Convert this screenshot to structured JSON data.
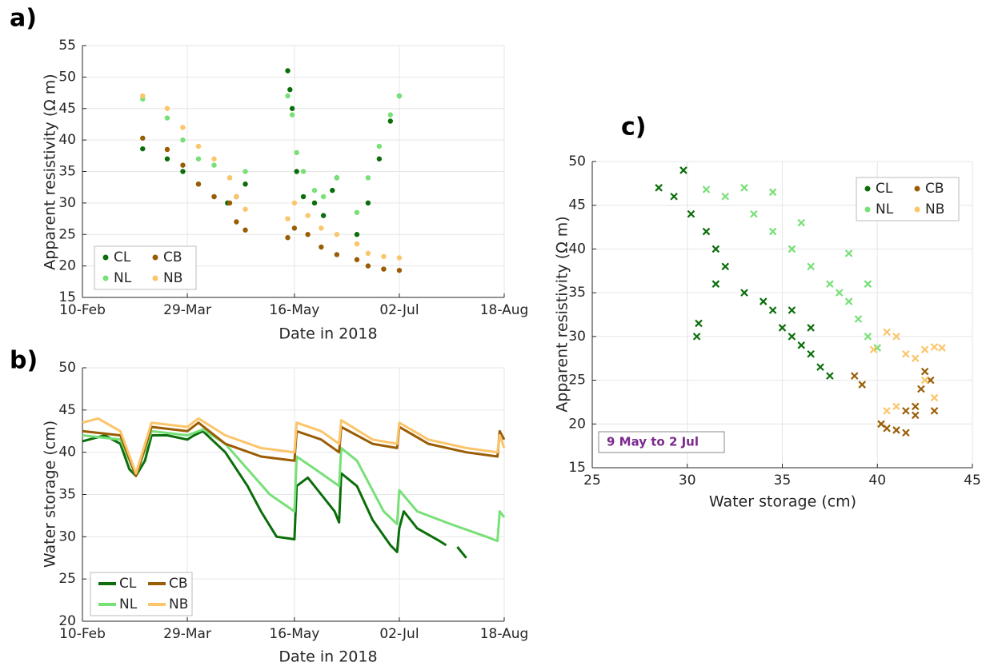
{
  "chart_data": [
    {
      "type": "scatter",
      "panel_label": "a)",
      "xlabel": "Date in 2018",
      "ylabel": "Apparent resistivity (Ω m)",
      "xlim": [
        "2018-02-10",
        "2018-08-18"
      ],
      "xticks": [
        {
          "value": "2018-02-10",
          "label": "10-Feb"
        },
        {
          "value": "2018-03-29",
          "label": "29-Mar"
        },
        {
          "value": "2018-05-16",
          "label": "16-May"
        },
        {
          "value": "2018-07-02",
          "label": "02-Jul"
        },
        {
          "value": "2018-08-18",
          "label": "18-Aug"
        }
      ],
      "ylim": [
        15,
        55
      ],
      "yticks": [
        15,
        20,
        25,
        30,
        35,
        40,
        45,
        50,
        55
      ],
      "grid": true,
      "legend": "lower left",
      "marker": "dot",
      "series": [
        {
          "name": "CL",
          "color": "#0b6e0b",
          "x": [
            "2018-03-09",
            "2018-03-20",
            "2018-03-27",
            "2018-04-03",
            "2018-04-10",
            "2018-04-16",
            "2018-04-20",
            "2018-04-24",
            "2018-05-13",
            "2018-05-14",
            "2018-05-15",
            "2018-05-17",
            "2018-05-20",
            "2018-05-25",
            "2018-05-29",
            "2018-06-02",
            "2018-06-04",
            "2018-06-13",
            "2018-06-18",
            "2018-06-23",
            "2018-06-28",
            "2018-07-02"
          ],
          "values": [
            38.6,
            37,
            35,
            33,
            31,
            30,
            31,
            33,
            51,
            48,
            45,
            35,
            31,
            30,
            28,
            32,
            34,
            25,
            30,
            37,
            43,
            47
          ]
        },
        {
          "name": "NL",
          "color": "#77e077",
          "x": [
            "2018-03-09",
            "2018-03-20",
            "2018-03-27",
            "2018-04-03",
            "2018-04-10",
            "2018-04-17",
            "2018-04-24",
            "2018-05-13",
            "2018-05-15",
            "2018-05-17",
            "2018-05-20",
            "2018-05-25",
            "2018-05-29",
            "2018-06-04",
            "2018-06-13",
            "2018-06-18",
            "2018-06-23",
            "2018-06-28",
            "2018-07-02"
          ],
          "values": [
            46.5,
            43.5,
            40,
            37,
            36,
            34,
            35,
            47,
            44,
            38,
            35,
            32,
            31,
            34,
            28.5,
            34,
            39,
            44,
            47
          ]
        },
        {
          "name": "CB",
          "color": "#9a5d05",
          "x": [
            "2018-03-09",
            "2018-03-20",
            "2018-03-27",
            "2018-04-03",
            "2018-04-10",
            "2018-04-17",
            "2018-04-20",
            "2018-04-24",
            "2018-05-13",
            "2018-05-16",
            "2018-05-22",
            "2018-05-28",
            "2018-06-04",
            "2018-06-13",
            "2018-06-18",
            "2018-06-25",
            "2018-07-02"
          ],
          "values": [
            40.3,
            38.5,
            36,
            33,
            31,
            30,
            27,
            25.7,
            24.5,
            26,
            25,
            23,
            21.8,
            21,
            20,
            19.5,
            19.3
          ]
        },
        {
          "name": "NB",
          "color": "#fbc56a",
          "x": [
            "2018-03-09",
            "2018-03-20",
            "2018-03-27",
            "2018-04-03",
            "2018-04-10",
            "2018-04-17",
            "2018-04-20",
            "2018-04-24",
            "2018-05-13",
            "2018-05-16",
            "2018-05-22",
            "2018-05-28",
            "2018-06-04",
            "2018-06-13",
            "2018-06-18",
            "2018-06-25",
            "2018-07-02"
          ],
          "values": [
            47,
            45,
            42,
            39,
            37,
            34,
            31,
            29,
            27.5,
            30,
            28,
            26,
            25,
            23.5,
            22,
            21.5,
            21.3
          ]
        }
      ]
    },
    {
      "type": "line",
      "panel_label": "b)",
      "xlabel": "Date in 2018",
      "ylabel": "Water storage (cm)",
      "xlim": [
        "2018-02-10",
        "2018-08-18"
      ],
      "xticks": [
        {
          "value": "2018-02-10",
          "label": "10-Feb"
        },
        {
          "value": "2018-03-29",
          "label": "29-Mar"
        },
        {
          "value": "2018-05-16",
          "label": "16-May"
        },
        {
          "value": "2018-07-02",
          "label": "02-Jul"
        },
        {
          "value": "2018-08-18",
          "label": "18-Aug"
        }
      ],
      "ylim": [
        20,
        50
      ],
      "yticks": [
        20,
        25,
        30,
        35,
        40,
        45,
        50
      ],
      "grid": true,
      "legend": "lower left",
      "series": [
        {
          "name": "CL",
          "color": "#0b6e0b",
          "x": [
            "2018-02-10",
            "2018-02-20",
            "2018-02-27",
            "2018-03-03",
            "2018-03-06",
            "2018-03-10",
            "2018-03-13",
            "2018-03-20",
            "2018-03-29",
            "2018-04-01",
            "2018-04-05",
            "2018-04-15",
            "2018-04-25",
            "2018-05-01",
            "2018-05-08",
            "2018-05-16",
            "2018-05-17",
            "2018-05-22",
            "2018-05-28",
            "2018-06-03",
            "2018-06-05",
            "2018-06-06",
            "2018-06-13",
            "2018-06-20",
            "2018-06-28",
            "2018-07-01",
            "2018-07-02",
            "2018-07-04",
            "2018-07-10",
            "2018-07-20",
            "2018-07-23",
            "2018-07-26",
            "2018-07-28",
            "2018-08-01"
          ],
          "values": [
            41.3,
            42,
            41,
            38,
            37.2,
            39,
            42,
            42,
            41.5,
            42,
            42.5,
            40,
            36,
            33,
            30,
            29.7,
            36,
            37,
            35,
            33,
            31.7,
            37.5,
            36,
            32,
            29,
            28.2,
            31,
            33,
            31,
            29.5,
            29,
            null,
            28.8,
            27.5
          ]
        },
        {
          "name": "NL",
          "color": "#77e077",
          "x": [
            "2018-02-10",
            "2018-02-27",
            "2018-03-06",
            "2018-03-13",
            "2018-03-29",
            "2018-04-05",
            "2018-04-15",
            "2018-04-25",
            "2018-05-05",
            "2018-05-16",
            "2018-05-17",
            "2018-05-28",
            "2018-06-05",
            "2018-06-06",
            "2018-06-13",
            "2018-06-25",
            "2018-07-01",
            "2018-07-02",
            "2018-07-10",
            "2018-07-25",
            "2018-08-10",
            "2018-08-15",
            "2018-08-16",
            "2018-08-18"
          ],
          "values": [
            42,
            41.5,
            37.2,
            42.5,
            42,
            42.7,
            41,
            38,
            35,
            33,
            39.5,
            37.5,
            36,
            40.5,
            39,
            33,
            31.5,
            35.5,
            33,
            31.5,
            30,
            29.5,
            33,
            32.3
          ]
        },
        {
          "name": "CB",
          "color": "#9a5d05",
          "x": [
            "2018-02-10",
            "2018-02-27",
            "2018-03-06",
            "2018-03-13",
            "2018-03-29",
            "2018-04-03",
            "2018-04-15",
            "2018-05-01",
            "2018-05-16",
            "2018-05-17",
            "2018-05-28",
            "2018-06-05",
            "2018-06-06",
            "2018-06-20",
            "2018-07-01",
            "2018-07-02",
            "2018-07-15",
            "2018-08-01",
            "2018-08-15",
            "2018-08-16",
            "2018-08-18"
          ],
          "values": [
            42.5,
            42,
            37.2,
            43,
            42.5,
            43.5,
            41,
            39.5,
            39,
            42.5,
            41.5,
            40,
            43,
            41,
            40.5,
            43,
            41,
            40,
            39.5,
            42.5,
            41.5
          ]
        },
        {
          "name": "NB",
          "color": "#fbc56a",
          "x": [
            "2018-02-10",
            "2018-02-17",
            "2018-02-27",
            "2018-03-06",
            "2018-03-13",
            "2018-03-29",
            "2018-04-03",
            "2018-04-15",
            "2018-05-01",
            "2018-05-16",
            "2018-05-17",
            "2018-05-28",
            "2018-06-05",
            "2018-06-06",
            "2018-06-20",
            "2018-07-01",
            "2018-07-02",
            "2018-07-15",
            "2018-08-01",
            "2018-08-15",
            "2018-08-16",
            "2018-08-18"
          ],
          "values": [
            43.5,
            44,
            42.5,
            37.5,
            43.5,
            43,
            44,
            42,
            40.5,
            40,
            43.5,
            42.5,
            41,
            43.8,
            41.5,
            41,
            43.5,
            41.5,
            40.5,
            40,
            42,
            40.5
          ]
        }
      ]
    },
    {
      "type": "scatter",
      "panel_label": "c)",
      "xlabel": "Water storage (cm)",
      "ylabel": "Apparent resistivity (Ω m)",
      "annotation": "9 May to 2 Jul",
      "xlim": [
        25,
        45
      ],
      "xticks": [
        25,
        30,
        35,
        40,
        45
      ],
      "ylim": [
        15,
        50
      ],
      "yticks": [
        15,
        20,
        25,
        30,
        35,
        40,
        45,
        50
      ],
      "grid": true,
      "legend": "upper right",
      "marker": "x",
      "series": [
        {
          "name": "CL",
          "color": "#0b6e0b",
          "x": [
            28.5,
            29.3,
            29.8,
            30.2,
            31,
            31.5,
            32,
            31.5,
            33,
            34,
            34.5,
            35,
            35.5,
            36,
            36.5,
            37,
            37.5,
            35.5,
            36.5,
            30.5,
            30.6
          ],
          "values": [
            47,
            46,
            49,
            44,
            42,
            40,
            38,
            36,
            35,
            34,
            33,
            31,
            30,
            29,
            28,
            26.5,
            25.5,
            33,
            31,
            30,
            31.5
          ]
        },
        {
          "name": "NL",
          "color": "#77e077",
          "x": [
            31,
            32,
            33,
            34.5,
            33.5,
            34.5,
            35.5,
            36.5,
            37.5,
            38.5,
            39,
            39.5,
            40,
            38.5,
            39.5,
            38,
            36
          ],
          "values": [
            46.8,
            46,
            47,
            46.5,
            44,
            42,
            40,
            38,
            36,
            34,
            32,
            30,
            28.7,
            39.5,
            36,
            35,
            43
          ]
        },
        {
          "name": "CB",
          "color": "#9a5d05",
          "x": [
            38.8,
            39.2,
            40.2,
            40.5,
            41,
            41.5,
            42,
            42.3,
            42.5,
            42.8,
            42,
            41.5,
            43
          ],
          "values": [
            25.5,
            24.5,
            20,
            19.5,
            19.3,
            19,
            22,
            24,
            26,
            25,
            21,
            21.5,
            21.5
          ]
        },
        {
          "name": "NB",
          "color": "#fbc56a",
          "x": [
            39.8,
            40.5,
            41,
            41.5,
            42,
            42.5,
            43,
            43.4,
            41,
            40.5,
            42.5,
            43
          ],
          "values": [
            28.5,
            30.5,
            30,
            28,
            27.5,
            28.5,
            28.8,
            28.7,
            22,
            21.5,
            25,
            23
          ]
        }
      ]
    }
  ]
}
